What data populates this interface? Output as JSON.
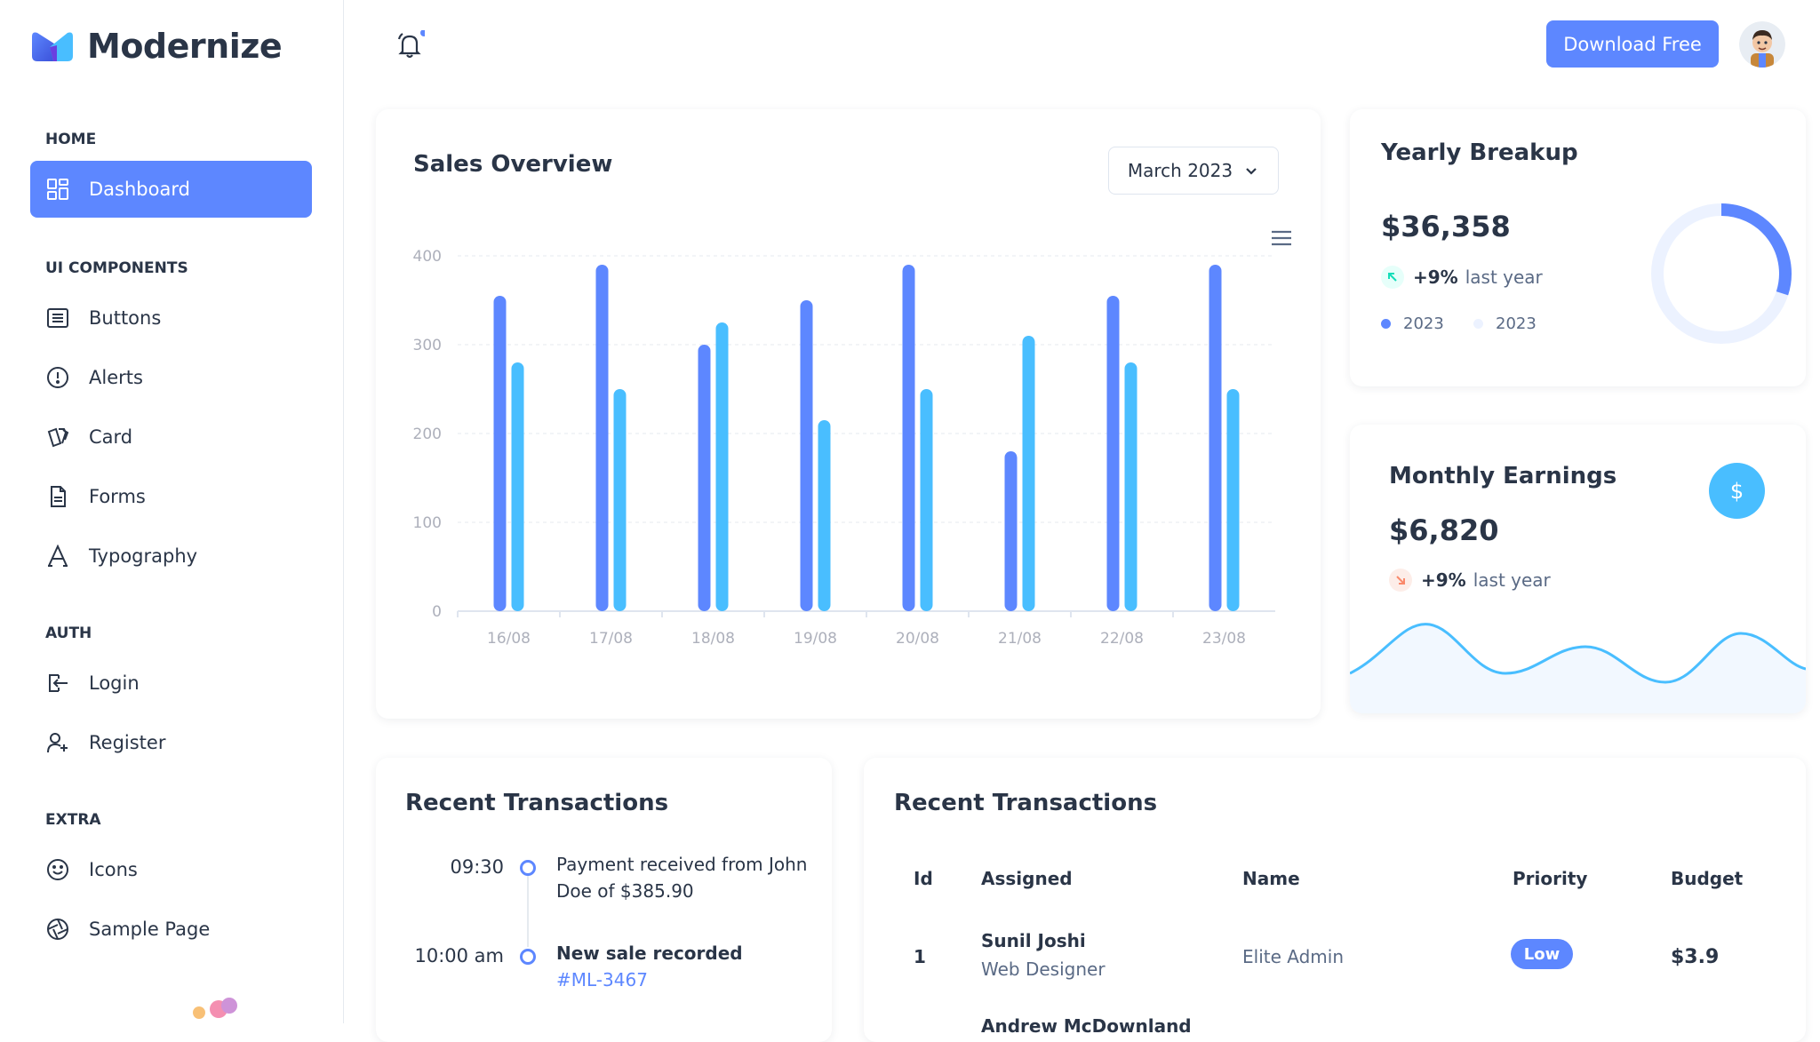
{
  "brand": {
    "name": "Modernize"
  },
  "sidebar": {
    "sections": [
      {
        "caption": "HOME",
        "items": [
          {
            "label": "Dashboard",
            "icon": "dashboard-icon",
            "active": true
          }
        ]
      },
      {
        "caption": "UI COMPONENTS",
        "items": [
          {
            "label": "Buttons",
            "icon": "list-icon"
          },
          {
            "label": "Alerts",
            "icon": "alert-circle-icon"
          },
          {
            "label": "Card",
            "icon": "cards-icon"
          },
          {
            "label": "Forms",
            "icon": "file-icon"
          },
          {
            "label": "Typography",
            "icon": "typography-icon"
          }
        ]
      },
      {
        "caption": "AUTH",
        "items": [
          {
            "label": "Login",
            "icon": "login-icon"
          },
          {
            "label": "Register",
            "icon": "user-plus-icon"
          }
        ]
      },
      {
        "caption": "EXTRA",
        "items": [
          {
            "label": "Icons",
            "icon": "mood-icon"
          },
          {
            "label": "Sample Page",
            "icon": "aperture-icon"
          }
        ]
      }
    ]
  },
  "header": {
    "download_label": "Download Free",
    "notification_icon": "bell-icon"
  },
  "sales_overview": {
    "title": "Sales Overview",
    "period": "March 2023",
    "menu_icon": "menu-icon"
  },
  "chart_data": {
    "type": "bar",
    "categories": [
      "16/08",
      "17/08",
      "18/08",
      "19/08",
      "20/08",
      "21/08",
      "22/08",
      "23/08"
    ],
    "series": [
      {
        "values": [
          355,
          390,
          300,
          350,
          390,
          180,
          355,
          390
        ],
        "color": "#5d87ff"
      },
      {
        "values": [
          280,
          250,
          325,
          215,
          250,
          310,
          280,
          250
        ],
        "color": "#49beff"
      }
    ],
    "yticks": [
      0,
      100,
      200,
      300,
      400
    ],
    "ylim": [
      0,
      400
    ],
    "grid": true
  },
  "yearly": {
    "title": "Yearly Breakup",
    "value": "$36,358",
    "delta_pct": "+9%",
    "delta_text": "last year",
    "legend": [
      "2023",
      "2023"
    ],
    "donut_fraction": 0.3,
    "colors": {
      "primary": "#5d87ff",
      "light": "#ecf2ff",
      "up": "#13deb9"
    }
  },
  "monthly": {
    "title": "Monthly Earnings",
    "value": "$6,820",
    "delta_pct": "+9%",
    "delta_text": "last year",
    "badge_icon": "dollar-icon",
    "colors": {
      "badge": "#49beff",
      "down": "#fa896b"
    }
  },
  "recent_timeline": {
    "title": "Recent Transactions",
    "items": [
      {
        "time": "09:30",
        "text": "Payment received from John Doe of $385.90"
      },
      {
        "time": "10:00 am",
        "text": "New sale recorded",
        "link": "#ML-3467"
      }
    ]
  },
  "recent_table": {
    "title": "Recent Transactions",
    "columns": [
      "Id",
      "Assigned",
      "Name",
      "Priority",
      "Budget"
    ],
    "rows": [
      {
        "id": "1",
        "assigned": "Sunil Joshi",
        "role": "Web Designer",
        "name": "Elite Admin",
        "priority": "Low",
        "budget": "$3.9"
      },
      {
        "assigned": "Andrew McDownland"
      }
    ]
  }
}
